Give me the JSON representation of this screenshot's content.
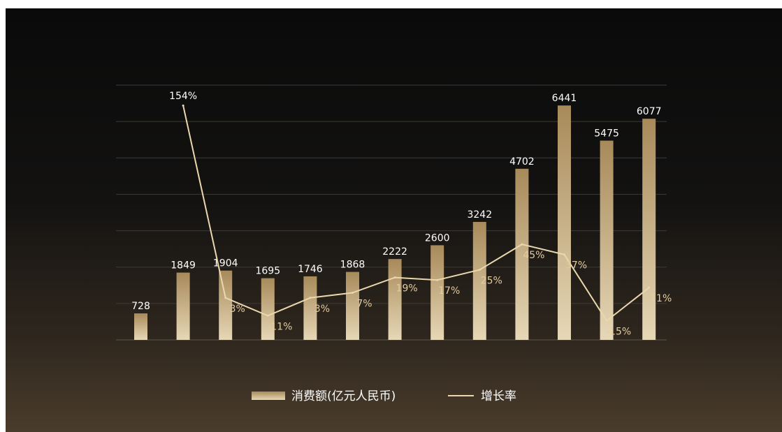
{
  "chart_data": {
    "type": "bar",
    "categories": [
      "",
      "",
      "",
      "",
      "",
      "",
      "",
      "",
      "",
      "",
      "",
      "",
      ""
    ],
    "series": [
      {
        "name": "消费额(亿元人民币)",
        "type": "bar",
        "values": [
          728,
          1849,
          1904,
          1695,
          1746,
          1868,
          2222,
          2600,
          3242,
          4702,
          6441,
          5475,
          6077
        ],
        "value_labels": [
          "728",
          "1849",
          "1904",
          "1695",
          "1746",
          "1868",
          "2222",
          "2600",
          "3242",
          "4702",
          "6441",
          "5475",
          "6077"
        ]
      },
      {
        "name": "增长率",
        "type": "line",
        "values": [
          null,
          154,
          3,
          -11,
          3,
          7,
          19,
          17,
          25,
          45,
          37,
          -15,
          11
        ],
        "value_labels": [
          "",
          "154%",
          "3%",
          "-11%",
          "3%",
          "7%",
          "19%",
          "17%",
          "25%",
          "45%",
          "37%",
          "-15%",
          "11%"
        ]
      }
    ],
    "ylim": [
      0,
      7000
    ],
    "y2lim": [
      -30,
      170
    ],
    "grid": true,
    "legend": "bottom-center",
    "colors": {
      "bar_top": "#a88a5a",
      "bar_bottom": "#e6d7b6",
      "line": "#ead7ad",
      "gridline": "#3c3a37",
      "label": "#ffffff",
      "rate_label": "#e3cc9f"
    }
  }
}
